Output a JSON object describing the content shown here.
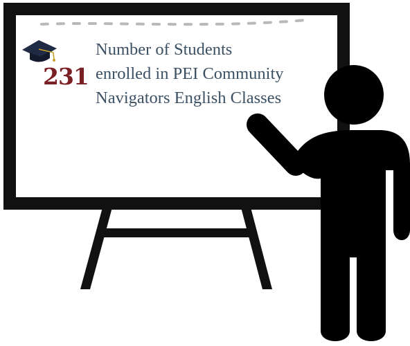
{
  "stat": {
    "value": "231",
    "caption_lines": [
      "Number of Students",
      "enrolled in PEI Community",
      "Navigators English Classes"
    ]
  },
  "icons": {
    "cap": "graduation-cap-icon",
    "presenter": "person-presenting-icon"
  },
  "colors": {
    "number": "#7a1f24",
    "caption": "#3c5064",
    "board_frame": "#111111",
    "dash": "#b9b9b9",
    "cap_body": "#1f2a44",
    "cap_tassel": "#c9a227",
    "figure": "#000000"
  }
}
